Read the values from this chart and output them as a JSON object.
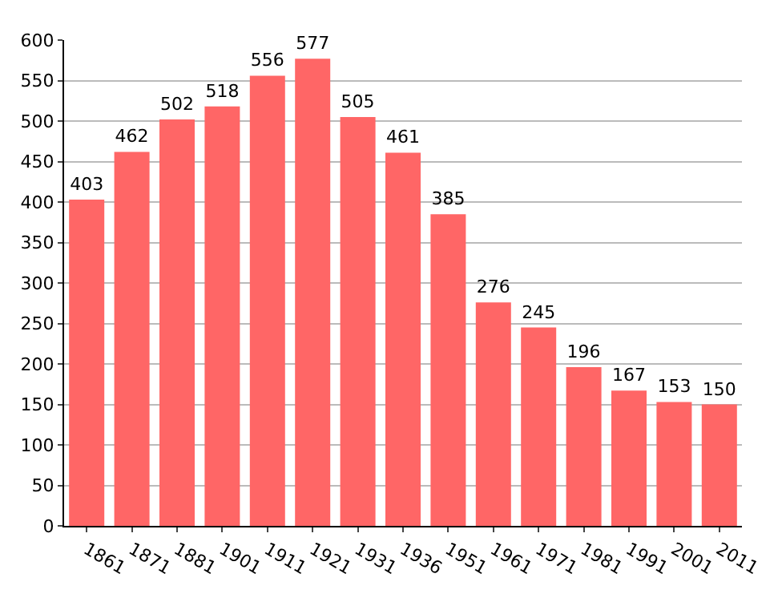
{
  "chart_data": {
    "type": "bar",
    "categories": [
      "1861",
      "1871",
      "1881",
      "1901",
      "1911",
      "1921",
      "1931",
      "1936",
      "1951",
      "1961",
      "1971",
      "1981",
      "1991",
      "2001",
      "2011"
    ],
    "values": [
      403,
      462,
      502,
      518,
      556,
      577,
      505,
      461,
      385,
      276,
      245,
      196,
      167,
      153,
      150
    ],
    "color": "#ff6666",
    "ylim": [
      0,
      600
    ],
    "yticks": [
      0,
      50,
      100,
      150,
      200,
      250,
      300,
      350,
      400,
      450,
      500,
      550,
      600
    ],
    "grid": "y",
    "data_labels": true
  }
}
